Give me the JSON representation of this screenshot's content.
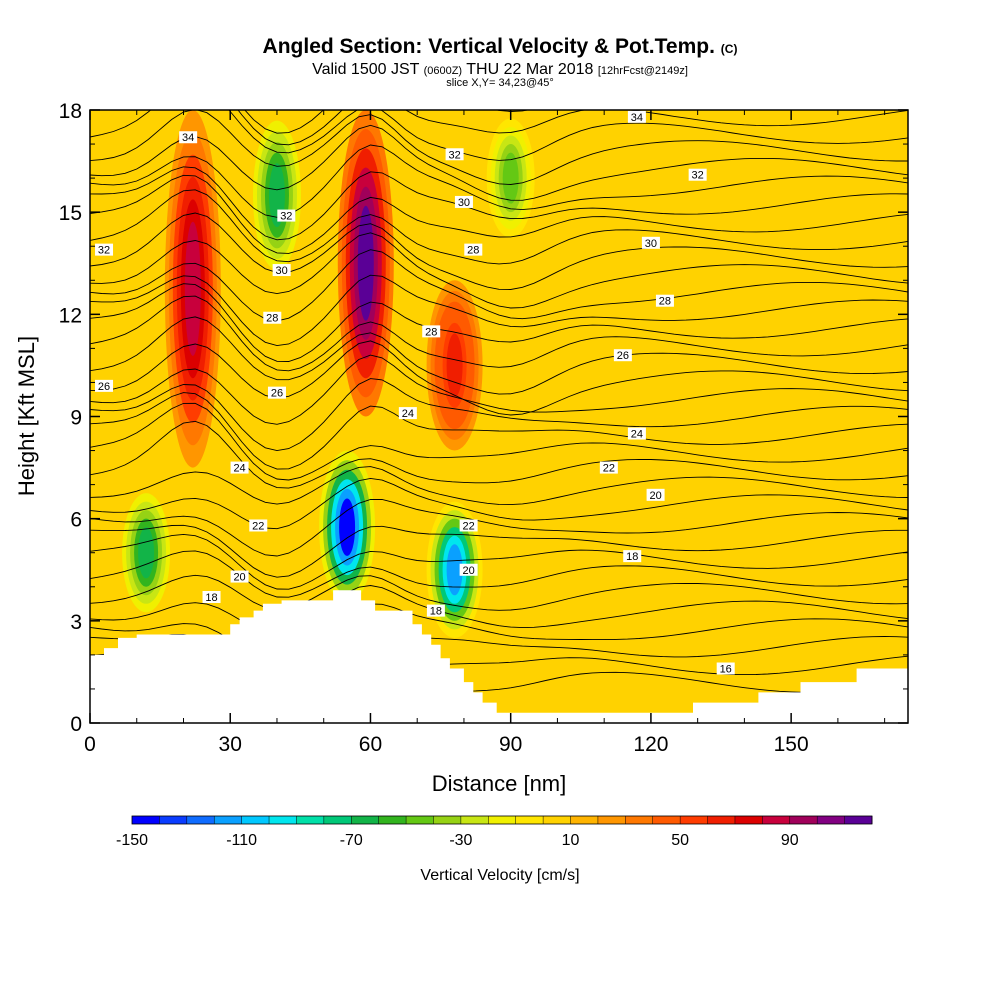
{
  "title": {
    "main": "Angled Section: Vertical Velocity & Pot.Temp.",
    "units_tag": "(C)",
    "valid_prefix": "Valid 1500 JST",
    "utc": "(0600Z)",
    "valid_suffix": "THU 22 Mar 2018",
    "forecast": "[12hrFcst@2149z]",
    "slice": "slice X,Y= 34,23@45°"
  },
  "chart_data": {
    "type": "heatmap",
    "xlabel": "Distance [nm]",
    "ylabel": "Height [Kft MSL]",
    "xlim": [
      0,
      175
    ],
    "ylim": [
      0,
      18
    ],
    "x_ticks": [
      "0",
      "30",
      "60",
      "90",
      "120",
      "150"
    ],
    "y_ticks": [
      "0",
      "3",
      "6",
      "9",
      "12",
      "15",
      "18"
    ],
    "colorbar": {
      "title": "Vertical Velocity [cm/s]",
      "labels": [
        "-150",
        "-110",
        "-70",
        "-30",
        "10",
        "50",
        "90"
      ],
      "colors": [
        "#0000ff",
        "#0a3cff",
        "#0f6cff",
        "#0aa0ff",
        "#00c8ff",
        "#00e6ee",
        "#00e0a8",
        "#00c878",
        "#12b448",
        "#32b41e",
        "#64c814",
        "#96d214",
        "#c8e614",
        "#f0f000",
        "#ffe600",
        "#ffd200",
        "#ffb400",
        "#ff9600",
        "#ff7800",
        "#ff5a00",
        "#ff3c00",
        "#f01e00",
        "#dc0000",
        "#c8003c",
        "#a0005a",
        "#820082",
        "#5a0096"
      ]
    },
    "velocity_features": [
      {
        "type": "updraft",
        "x": 22,
        "y_range": [
          7.5,
          18
        ],
        "peak": 80
      },
      {
        "type": "updraft",
        "x": 59,
        "y_range": [
          9,
          18
        ],
        "peak": 110
      },
      {
        "type": "updraft",
        "x": 78,
        "y_range": [
          8,
          13
        ],
        "peak": 60
      },
      {
        "type": "downdraft",
        "x": 40,
        "y_range": [
          13,
          18
        ],
        "peak": -70
      },
      {
        "type": "downdraft",
        "x": 12,
        "y_range": [
          3,
          7
        ],
        "peak": -70
      },
      {
        "type": "downdraft",
        "x": 55,
        "y_range": [
          3.5,
          8
        ],
        "peak": -150
      },
      {
        "type": "downdraft",
        "x": 78,
        "y_range": [
          2.5,
          6.5
        ],
        "peak": -120
      },
      {
        "type": "downdraft",
        "x": 90,
        "y_range": [
          14,
          18
        ],
        "peak": -50
      }
    ],
    "theta_contour_labels": [
      {
        "value": "34",
        "x": 21,
        "y": 17.2
      },
      {
        "value": "34",
        "x": 117,
        "y": 17.8
      },
      {
        "value": "32",
        "x": 3,
        "y": 13.9
      },
      {
        "value": "32",
        "x": 42,
        "y": 14.9
      },
      {
        "value": "32",
        "x": 78,
        "y": 16.7
      },
      {
        "value": "32",
        "x": 130,
        "y": 16.1
      },
      {
        "value": "30",
        "x": 41,
        "y": 13.3
      },
      {
        "value": "30",
        "x": 80,
        "y": 15.3
      },
      {
        "value": "30",
        "x": 120,
        "y": 14.1
      },
      {
        "value": "28",
        "x": 39,
        "y": 11.9
      },
      {
        "value": "28",
        "x": 82,
        "y": 13.9
      },
      {
        "value": "28",
        "x": 73,
        "y": 11.5
      },
      {
        "value": "28",
        "x": 123,
        "y": 12.4
      },
      {
        "value": "26",
        "x": 3,
        "y": 9.9
      },
      {
        "value": "26",
        "x": 40,
        "y": 9.7
      },
      {
        "value": "26",
        "x": 114,
        "y": 10.8
      },
      {
        "value": "24",
        "x": 32,
        "y": 7.5
      },
      {
        "value": "24",
        "x": 68,
        "y": 9.1
      },
      {
        "value": "24",
        "x": 117,
        "y": 8.5
      },
      {
        "value": "22",
        "x": 36,
        "y": 5.8
      },
      {
        "value": "22",
        "x": 81,
        "y": 5.8
      },
      {
        "value": "22",
        "x": 111,
        "y": 7.5
      },
      {
        "value": "20",
        "x": 32,
        "y": 4.3
      },
      {
        "value": "20",
        "x": 81,
        "y": 4.5
      },
      {
        "value": "20",
        "x": 121,
        "y": 6.7
      },
      {
        "value": "18",
        "x": 26,
        "y": 3.7
      },
      {
        "value": "18",
        "x": 74,
        "y": 3.3
      },
      {
        "value": "18",
        "x": 116,
        "y": 4.9
      },
      {
        "value": "16",
        "x": 136,
        "y": 1.6
      }
    ],
    "terrain": [
      [
        0,
        2.0
      ],
      [
        3,
        2.0
      ],
      [
        3,
        2.2
      ],
      [
        6,
        2.2
      ],
      [
        6,
        2.5
      ],
      [
        10,
        2.5
      ],
      [
        10,
        2.6
      ],
      [
        30,
        2.6
      ],
      [
        30,
        2.9
      ],
      [
        32,
        2.9
      ],
      [
        32,
        3.1
      ],
      [
        35,
        3.1
      ],
      [
        35,
        3.3
      ],
      [
        37,
        3.3
      ],
      [
        37,
        3.5
      ],
      [
        41,
        3.5
      ],
      [
        41,
        3.6
      ],
      [
        52,
        3.6
      ],
      [
        52,
        3.9
      ],
      [
        58,
        3.9
      ],
      [
        58,
        3.6
      ],
      [
        61,
        3.6
      ],
      [
        61,
        3.3
      ],
      [
        69,
        3.3
      ],
      [
        69,
        2.9
      ],
      [
        71,
        2.9
      ],
      [
        71,
        2.6
      ],
      [
        73,
        2.6
      ],
      [
        73,
        2.3
      ],
      [
        75,
        2.3
      ],
      [
        75,
        1.9
      ],
      [
        77,
        1.9
      ],
      [
        77,
        1.6
      ],
      [
        80,
        1.6
      ],
      [
        80,
        1.2
      ],
      [
        82,
        1.2
      ],
      [
        82,
        0.9
      ],
      [
        84,
        0.9
      ],
      [
        84,
        0.6
      ],
      [
        87,
        0.6
      ],
      [
        87,
        0.3
      ],
      [
        129,
        0.3
      ],
      [
        129,
        0.6
      ],
      [
        143,
        0.6
      ],
      [
        143,
        0.9
      ],
      [
        152,
        0.9
      ],
      [
        152,
        1.2
      ],
      [
        164,
        1.2
      ],
      [
        164,
        1.6
      ],
      [
        175,
        1.6
      ],
      [
        175,
        0
      ],
      [
        0,
        0
      ]
    ]
  }
}
